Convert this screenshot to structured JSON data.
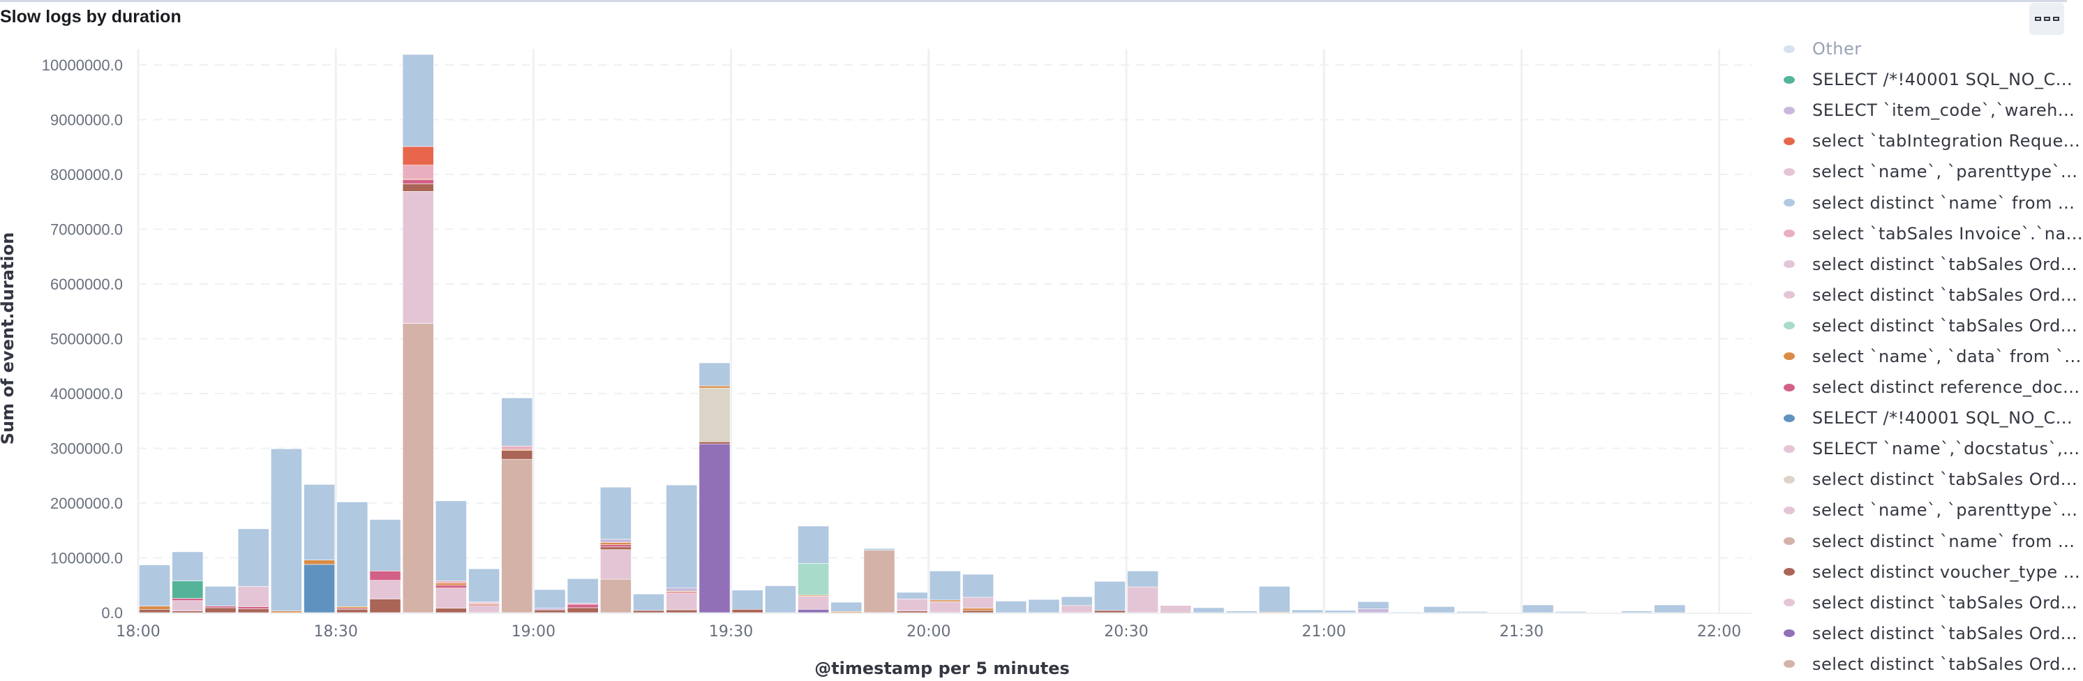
{
  "panel": {
    "title": "Slow logs by duration",
    "options_icon": "three-squares-icon"
  },
  "chart_data": {
    "type": "bar",
    "stacked": true,
    "title": "Slow logs by duration",
    "xlabel": "@timestamp per 5 minutes",
    "ylabel": "Sum of event.duration",
    "ylim": [
      0,
      10200000
    ],
    "yticks": [
      "0.0",
      "1000000.0",
      "2000000.0",
      "3000000.0",
      "4000000.0",
      "5000000.0",
      "6000000.0",
      "7000000.0",
      "8000000.0",
      "9000000.0",
      "10000000.0"
    ],
    "xticks": [
      "18:00",
      "18:30",
      "19:00",
      "19:30",
      "20:00",
      "20:30",
      "21:00",
      "21:30",
      "22:00"
    ],
    "grid": true,
    "legend_position": "right",
    "series": [
      {
        "name": "Other",
        "color": "#d6e2ef"
      },
      {
        "name": "SELECT /*!40001 SQL_NO_C...",
        "color": "#54b399"
      },
      {
        "name": "SELECT `item_code`,`wareh...",
        "color": "#c9b8dc"
      },
      {
        "name": "select `tabIntegration Reque...",
        "color": "#e7664c"
      },
      {
        "name": "select `name`, `parenttype`...",
        "color": "#e4c5d6"
      },
      {
        "name": "select distinct `name` from ...",
        "color": "#b0c8e0"
      },
      {
        "name": "select `tabSales Invoice`.`na...",
        "color": "#e9aebf"
      },
      {
        "name": "select distinct `tabSales Ord...",
        "color": "#e4c5d6"
      },
      {
        "name": "select distinct `tabSales Ord...",
        "color": "#e4c5d6"
      },
      {
        "name": "select distinct `tabSales Ord...",
        "color": "#a8dbc9"
      },
      {
        "name": "select `name`, `data` from `...",
        "color": "#da8b45"
      },
      {
        "name": "select distinct reference_doc...",
        "color": "#d36086"
      },
      {
        "name": "SELECT /*!40001 SQL_NO_C...",
        "color": "#6092c0"
      },
      {
        "name": "SELECT `name`,`docstatus`,...",
        "color": "#e4c5d6"
      },
      {
        "name": "select distinct `tabSales Ord...",
        "color": "#dcd4c6"
      },
      {
        "name": "select `name`, `parenttype`...",
        "color": "#e4c5d6"
      },
      {
        "name": "select distinct `name` from ...",
        "color": "#d4b2a8"
      },
      {
        "name": "select distinct voucher_type ...",
        "color": "#aa6556"
      },
      {
        "name": "select distinct `tabSales Ord...",
        "color": "#e4c5d6"
      },
      {
        "name": "select distinct `tabSales Ord...",
        "color": "#9170b8"
      },
      {
        "name": "select distinct `tabSales Ord...",
        "color": "#d4b2a8"
      }
    ],
    "bins": [
      {
        "x": "18:00",
        "stack": [
          [
            17,
            60000
          ],
          [
            10,
            60000
          ],
          [
            5,
            750000
          ]
        ]
      },
      {
        "x": "18:05",
        "stack": [
          [
            17,
            30000
          ],
          [
            7,
            190000
          ],
          [
            11,
            40000
          ],
          [
            1,
            320000
          ],
          [
            5,
            530000
          ]
        ]
      },
      {
        "x": "18:10",
        "stack": [
          [
            17,
            90000
          ],
          [
            11,
            30000
          ],
          [
            5,
            360000
          ]
        ]
      },
      {
        "x": "18:15",
        "stack": [
          [
            17,
            70000
          ],
          [
            11,
            40000
          ],
          [
            7,
            370000
          ],
          [
            5,
            1050000
          ]
        ]
      },
      {
        "x": "18:20",
        "stack": [
          [
            10,
            30000
          ],
          [
            5,
            2960000
          ]
        ]
      },
      {
        "x": "18:25",
        "stack": [
          [
            12,
            880000
          ],
          [
            10,
            80000
          ],
          [
            5,
            1380000
          ]
        ]
      },
      {
        "x": "18:30",
        "stack": [
          [
            17,
            60000
          ],
          [
            11,
            20000
          ],
          [
            10,
            30000
          ],
          [
            5,
            1910000
          ]
        ]
      },
      {
        "x": "18:35",
        "stack": [
          [
            17,
            250000
          ],
          [
            7,
            340000
          ],
          [
            11,
            170000
          ],
          [
            5,
            940000
          ]
        ]
      },
      {
        "x": "18:40",
        "stack": [
          [
            16,
            5280000
          ],
          [
            7,
            2410000
          ],
          [
            17,
            140000
          ],
          [
            11,
            80000
          ],
          [
            10,
            10000
          ],
          [
            6,
            250000
          ],
          [
            3,
            340000
          ],
          [
            5,
            1680000
          ]
        ]
      },
      {
        "x": "18:45",
        "stack": [
          [
            17,
            80000
          ],
          [
            7,
            370000
          ],
          [
            11,
            50000
          ],
          [
            10,
            40000
          ],
          [
            6,
            40000
          ],
          [
            5,
            1460000
          ]
        ]
      },
      {
        "x": "18:50",
        "stack": [
          [
            7,
            120000
          ],
          [
            11,
            20000
          ],
          [
            10,
            20000
          ],
          [
            6,
            20000
          ],
          [
            2,
            20000
          ],
          [
            5,
            600000
          ]
        ]
      },
      {
        "x": "18:55",
        "stack": [
          [
            16,
            2800000
          ],
          [
            17,
            160000
          ],
          [
            10,
            20000
          ],
          [
            6,
            60000
          ],
          [
            5,
            880000
          ]
        ]
      },
      {
        "x": "19:00",
        "stack": [
          [
            17,
            50000
          ],
          [
            2,
            30000
          ],
          [
            5,
            340000
          ]
        ]
      },
      {
        "x": "19:05",
        "stack": [
          [
            17,
            90000
          ],
          [
            11,
            60000
          ],
          [
            6,
            20000
          ],
          [
            5,
            450000
          ]
        ]
      },
      {
        "x": "19:10",
        "stack": [
          [
            16,
            610000
          ],
          [
            7,
            540000
          ],
          [
            17,
            50000
          ],
          [
            11,
            40000
          ],
          [
            10,
            40000
          ],
          [
            2,
            60000
          ],
          [
            5,
            950000
          ]
        ]
      },
      {
        "x": "19:15",
        "stack": [
          [
            17,
            40000
          ],
          [
            5,
            300000
          ]
        ]
      },
      {
        "x": "19:20",
        "stack": [
          [
            17,
            50000
          ],
          [
            7,
            300000
          ],
          [
            11,
            20000
          ],
          [
            10,
            20000
          ],
          [
            2,
            60000
          ],
          [
            5,
            1880000
          ]
        ]
      },
      {
        "x": "19:25",
        "stack": [
          [
            19,
            3080000
          ],
          [
            17,
            40000
          ],
          [
            14,
            980000
          ],
          [
            10,
            40000
          ],
          [
            5,
            420000
          ]
        ]
      },
      {
        "x": "19:30",
        "stack": [
          [
            17,
            60000
          ],
          [
            5,
            350000
          ]
        ]
      },
      {
        "x": "19:35",
        "stack": [
          [
            5,
            490000
          ]
        ]
      },
      {
        "x": "19:40",
        "stack": [
          [
            19,
            60000
          ],
          [
            7,
            240000
          ],
          [
            10,
            20000
          ],
          [
            9,
            580000
          ],
          [
            5,
            680000
          ]
        ]
      },
      {
        "x": "19:45",
        "stack": [
          [
            10,
            20000
          ],
          [
            5,
            170000
          ]
        ]
      },
      {
        "x": "19:50",
        "stack": [
          [
            16,
            1140000
          ],
          [
            5,
            30000
          ]
        ]
      },
      {
        "x": "19:55",
        "stack": [
          [
            17,
            30000
          ],
          [
            7,
            220000
          ],
          [
            5,
            120000
          ]
        ]
      },
      {
        "x": "20:00",
        "stack": [
          [
            7,
            200000
          ],
          [
            10,
            30000
          ],
          [
            5,
            530000
          ]
        ]
      },
      {
        "x": "20:05",
        "stack": [
          [
            17,
            40000
          ],
          [
            10,
            40000
          ],
          [
            7,
            200000
          ],
          [
            5,
            420000
          ]
        ]
      },
      {
        "x": "20:10",
        "stack": [
          [
            5,
            210000
          ]
        ]
      },
      {
        "x": "20:15",
        "stack": [
          [
            5,
            240000
          ]
        ]
      },
      {
        "x": "20:20",
        "stack": [
          [
            7,
            130000
          ],
          [
            5,
            160000
          ]
        ]
      },
      {
        "x": "20:25",
        "stack": [
          [
            17,
            40000
          ],
          [
            5,
            530000
          ]
        ]
      },
      {
        "x": "20:30",
        "stack": [
          [
            7,
            470000
          ],
          [
            5,
            290000
          ]
        ]
      },
      {
        "x": "20:35",
        "stack": [
          [
            17,
            10000
          ],
          [
            7,
            120000
          ]
        ]
      },
      {
        "x": "20:40",
        "stack": [
          [
            5,
            90000
          ]
        ]
      },
      {
        "x": "20:45",
        "stack": [
          [
            5,
            30000
          ]
        ]
      },
      {
        "x": "20:50",
        "stack": [
          [
            10,
            10000
          ],
          [
            5,
            470000
          ]
        ]
      },
      {
        "x": "20:55",
        "stack": [
          [
            5,
            50000
          ]
        ]
      },
      {
        "x": "21:00",
        "stack": [
          [
            5,
            40000
          ]
        ]
      },
      {
        "x": "21:05",
        "stack": [
          [
            2,
            70000
          ],
          [
            5,
            130000
          ]
        ]
      },
      {
        "x": "21:10",
        "stack": [
          [
            5,
            10000
          ]
        ]
      },
      {
        "x": "21:15",
        "stack": [
          [
            5,
            110000
          ]
        ]
      },
      {
        "x": "21:20",
        "stack": [
          [
            5,
            20000
          ]
        ]
      },
      {
        "x": "21:25",
        "stack": []
      },
      {
        "x": "21:30",
        "stack": [
          [
            5,
            140000
          ]
        ]
      },
      {
        "x": "21:35",
        "stack": [
          [
            5,
            20000
          ]
        ]
      },
      {
        "x": "21:40",
        "stack": [
          [
            5,
            5000
          ]
        ]
      },
      {
        "x": "21:45",
        "stack": [
          [
            5,
            30000
          ]
        ]
      },
      {
        "x": "21:50",
        "stack": [
          [
            5,
            140000
          ]
        ]
      },
      {
        "x": "21:55",
        "stack": []
      }
    ]
  }
}
